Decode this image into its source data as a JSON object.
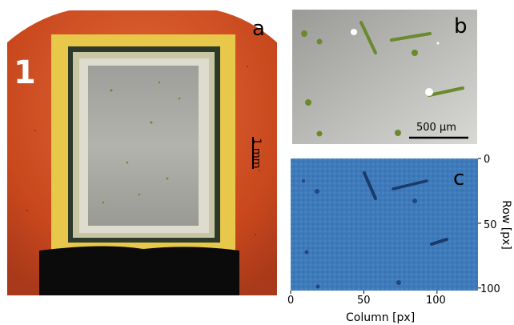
{
  "figure": {
    "panel_a": {
      "letter": "a",
      "corner_mark": "1",
      "scale_bar_label": "1 mm"
    },
    "panel_b": {
      "letter": "b",
      "scale_bar_label": "500 µm"
    },
    "panel_c": {
      "letter": "c",
      "xlabel": "Column [px]",
      "ylabel": "Row [px]",
      "xticks": [
        "0",
        "50",
        "100"
      ],
      "yticks": [
        "0",
        "50",
        "100"
      ],
      "xlim": [
        0,
        128
      ],
      "ylim": [
        0,
        102
      ]
    }
  },
  "colors": {
    "droplet_orange": "#d04f22",
    "electrode_gold": "#e8c84a",
    "glass_gray": "#a9a9a5",
    "diatom_green": "#6a8a2c",
    "detector_blue": "#3f7bbb",
    "track_dark": "#1a3a6a"
  }
}
